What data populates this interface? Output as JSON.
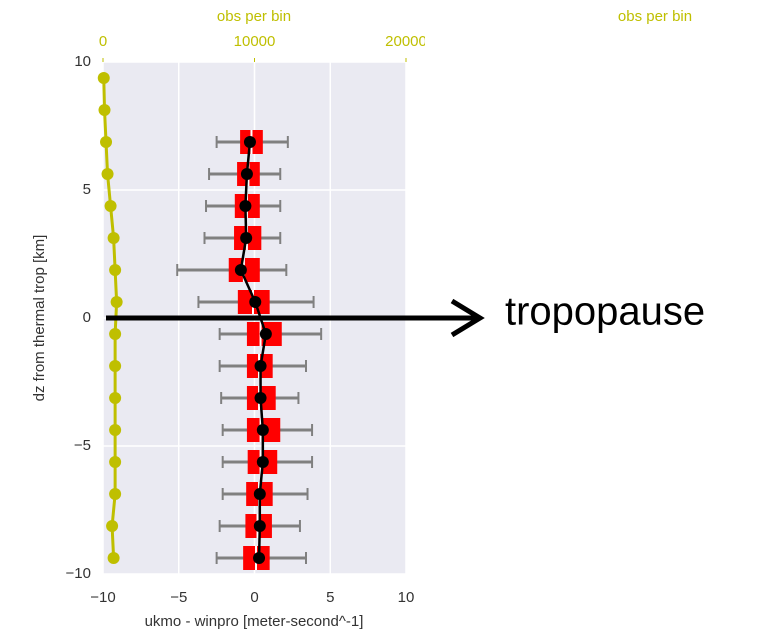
{
  "chart_data": {
    "type": "box",
    "x2_label": "obs per bin",
    "other_panel_x2_label": "obs per bin",
    "x_label": "ukmo - winpro [meter-second^-1]",
    "y_label": "dz from thermal trop [km]",
    "y": [
      9.375,
      8.125,
      6.875,
      5.625,
      4.375,
      3.125,
      1.875,
      0.625,
      -0.625,
      -1.875,
      -3.125,
      -4.375,
      -5.625,
      -6.875,
      -8.125,
      -9.375
    ],
    "xlim": [
      -10,
      10
    ],
    "xticks": [
      {
        "value": -10,
        "label": "−10"
      },
      {
        "value": -5,
        "label": "−5"
      },
      0,
      5,
      10
    ],
    "ylim": [
      -10,
      10
    ],
    "yticks": [
      {
        "value": -10,
        "label": "−10"
      },
      {
        "value": -5,
        "label": "−5"
      },
      0,
      5,
      10
    ],
    "x2lim": [
      0,
      20000
    ],
    "x2ticks": [
      0,
      10000,
      20000
    ],
    "grid": true,
    "boxes": {
      "color": "#ff0000",
      "whisker_color": "#808080",
      "whisker_low": [
        null,
        null,
        -2.5,
        -3.0,
        -3.2,
        -3.3,
        -5.1,
        -3.7,
        -2.3,
        -2.3,
        -2.2,
        -2.1,
        -2.1,
        -2.1,
        -2.3,
        -2.5
      ],
      "q1": [
        null,
        null,
        -0.95,
        -1.15,
        -1.3,
        -1.35,
        -1.7,
        -1.1,
        -0.5,
        -0.5,
        -0.5,
        -0.5,
        -0.45,
        -0.55,
        -0.6,
        -0.75
      ],
      "median": [
        null,
        null,
        -0.2,
        -0.4,
        -0.5,
        -0.5,
        -0.7,
        -0.1,
        0.4,
        0.3,
        0.3,
        0.4,
        0.4,
        0.3,
        0.2,
        0.1
      ],
      "q3": [
        null,
        null,
        0.55,
        0.35,
        0.35,
        0.45,
        0.35,
        1.0,
        1.8,
        1.2,
        1.4,
        1.7,
        1.5,
        1.2,
        1.15,
        1.0
      ],
      "whisker_high": [
        null,
        null,
        2.2,
        1.7,
        1.7,
        1.7,
        2.1,
        3.9,
        4.4,
        3.4,
        2.9,
        3.8,
        3.8,
        3.5,
        3.0,
        3.4
      ]
    },
    "mean": {
      "color": "#000000",
      "values": [
        null,
        null,
        -0.3,
        -0.5,
        -0.6,
        -0.55,
        -0.9,
        0.05,
        0.75,
        0.4,
        0.4,
        0.55,
        0.55,
        0.35,
        0.35,
        0.3
      ]
    },
    "obs": {
      "color": "#bfbf00",
      "axis": "x2",
      "values": [
        50,
        100,
        200,
        300,
        500,
        700,
        800,
        900,
        800,
        800,
        800,
        800,
        800,
        800,
        600,
        700
      ]
    },
    "annotations": [
      {
        "text": "tropopause",
        "y": 0
      }
    ]
  }
}
